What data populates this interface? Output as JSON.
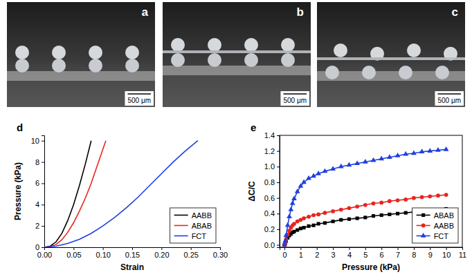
{
  "photos": [
    {
      "label": "a",
      "scale_bar": "500 μm"
    },
    {
      "label": "b",
      "scale_bar": "500 μm"
    },
    {
      "label": "c",
      "scale_bar": "500 μm"
    }
  ],
  "chart_data": [
    {
      "type": "line",
      "panel": "d",
      "x_label": "Strain",
      "y_label": "Pressure (kPa)",
      "xlim": [
        0,
        0.3
      ],
      "xticks": [
        {
          "value": 0,
          "label": "0.00"
        },
        {
          "value": 0.05,
          "label": "0.05"
        },
        {
          "value": 0.1,
          "label": "0.10"
        },
        {
          "value": 0.15,
          "label": "0.15"
        },
        {
          "value": 0.2,
          "label": "0.20"
        },
        {
          "value": 0.25,
          "label": "0.25"
        },
        {
          "value": 0.3,
          "label": "0.30"
        }
      ],
      "ylim": [
        0,
        10.5
      ],
      "yticks": [
        0,
        2,
        4,
        6,
        8,
        10
      ],
      "grid": false,
      "legend": "lower right",
      "series": [
        {
          "name": "AABB",
          "color": "#000000",
          "line_style": "solid",
          "x": [
            0,
            0.01,
            0.02,
            0.03,
            0.04,
            0.05,
            0.06,
            0.07,
            0.08
          ],
          "values": [
            0,
            0.1,
            0.5,
            1.3,
            2.5,
            4,
            5.8,
            7.8,
            10
          ]
        },
        {
          "name": "ABAB",
          "color": "#e8251f",
          "line_style": "solid",
          "x": [
            0,
            0.01,
            0.02,
            0.03,
            0.04,
            0.05,
            0.06,
            0.07,
            0.08,
            0.09,
            0.105
          ],
          "values": [
            0,
            0.05,
            0.25,
            0.7,
            1.4,
            2.3,
            3.4,
            4.6,
            6,
            7.6,
            10
          ]
        },
        {
          "name": "FCT",
          "color": "#1f3fe0",
          "line_style": "solid",
          "x": [
            0,
            0.02,
            0.04,
            0.06,
            0.08,
            0.1,
            0.12,
            0.14,
            0.16,
            0.18,
            0.2,
            0.22,
            0.24,
            0.262
          ],
          "values": [
            0,
            0.1,
            0.35,
            0.75,
            1.3,
            2,
            2.8,
            3.7,
            4.7,
            5.8,
            6.9,
            8,
            9,
            10
          ]
        }
      ]
    },
    {
      "type": "line",
      "panel": "e",
      "x_label": "Pressure (kPa)",
      "y_label": "ΔC/C",
      "xlim": [
        -0.3,
        11
      ],
      "xticks": [
        0,
        1,
        2,
        3,
        4,
        5,
        6,
        7,
        8,
        9,
        10,
        11
      ],
      "ylim": [
        -0.03,
        1.4
      ],
      "yticks": [
        {
          "value": 0,
          "label": "0.0"
        },
        {
          "value": 0.2,
          "label": "0.2"
        },
        {
          "value": 0.4,
          "label": "0.4"
        },
        {
          "value": 0.6,
          "label": "0.6"
        },
        {
          "value": 0.8,
          "label": "0.8"
        },
        {
          "value": 1.0,
          "label": "1.0"
        },
        {
          "value": 1.2,
          "label": "1.2"
        },
        {
          "value": 1.4,
          "label": "1.4"
        }
      ],
      "grid": false,
      "legend": "lower right",
      "x": [
        0,
        0.05,
        0.1,
        0.2,
        0.3,
        0.4,
        0.5,
        0.6,
        0.8,
        1.0,
        1.2,
        1.5,
        1.8,
        2.1,
        2.5,
        3,
        3.5,
        4,
        4.5,
        5,
        5.5,
        6,
        6.5,
        7,
        7.5,
        8,
        8.5,
        9,
        9.5,
        10
      ],
      "series": [
        {
          "name": "ABAB",
          "color": "#000000",
          "marker": "square",
          "line_style": "solid",
          "values": [
            0,
            0.02,
            0.05,
            0.09,
            0.12,
            0.14,
            0.16,
            0.17,
            0.19,
            0.21,
            0.22,
            0.24,
            0.25,
            0.27,
            0.28,
            0.3,
            0.32,
            0.33,
            0.34,
            0.35,
            0.37,
            0.38,
            0.39,
            0.4,
            0.41,
            0.42,
            0.43,
            0.44,
            0.45,
            0.46
          ]
        },
        {
          "name": "AABB",
          "color": "#e8251f",
          "marker": "circle",
          "line_style": "solid",
          "values": [
            0,
            0.03,
            0.07,
            0.13,
            0.18,
            0.22,
            0.25,
            0.27,
            0.3,
            0.32,
            0.34,
            0.36,
            0.38,
            0.39,
            0.41,
            0.43,
            0.45,
            0.47,
            0.49,
            0.51,
            0.53,
            0.54,
            0.56,
            0.57,
            0.58,
            0.6,
            0.61,
            0.62,
            0.63,
            0.64
          ]
        },
        {
          "name": "FCT",
          "color": "#1f3fe0",
          "marker": "triangle",
          "line_style": "solid",
          "values": [
            0,
            0.05,
            0.12,
            0.25,
            0.36,
            0.45,
            0.53,
            0.59,
            0.68,
            0.75,
            0.8,
            0.85,
            0.88,
            0.91,
            0.94,
            0.97,
            1.0,
            1.02,
            1.04,
            1.06,
            1.08,
            1.1,
            1.12,
            1.14,
            1.16,
            1.17,
            1.19,
            1.2,
            1.21,
            1.22
          ]
        }
      ]
    }
  ]
}
